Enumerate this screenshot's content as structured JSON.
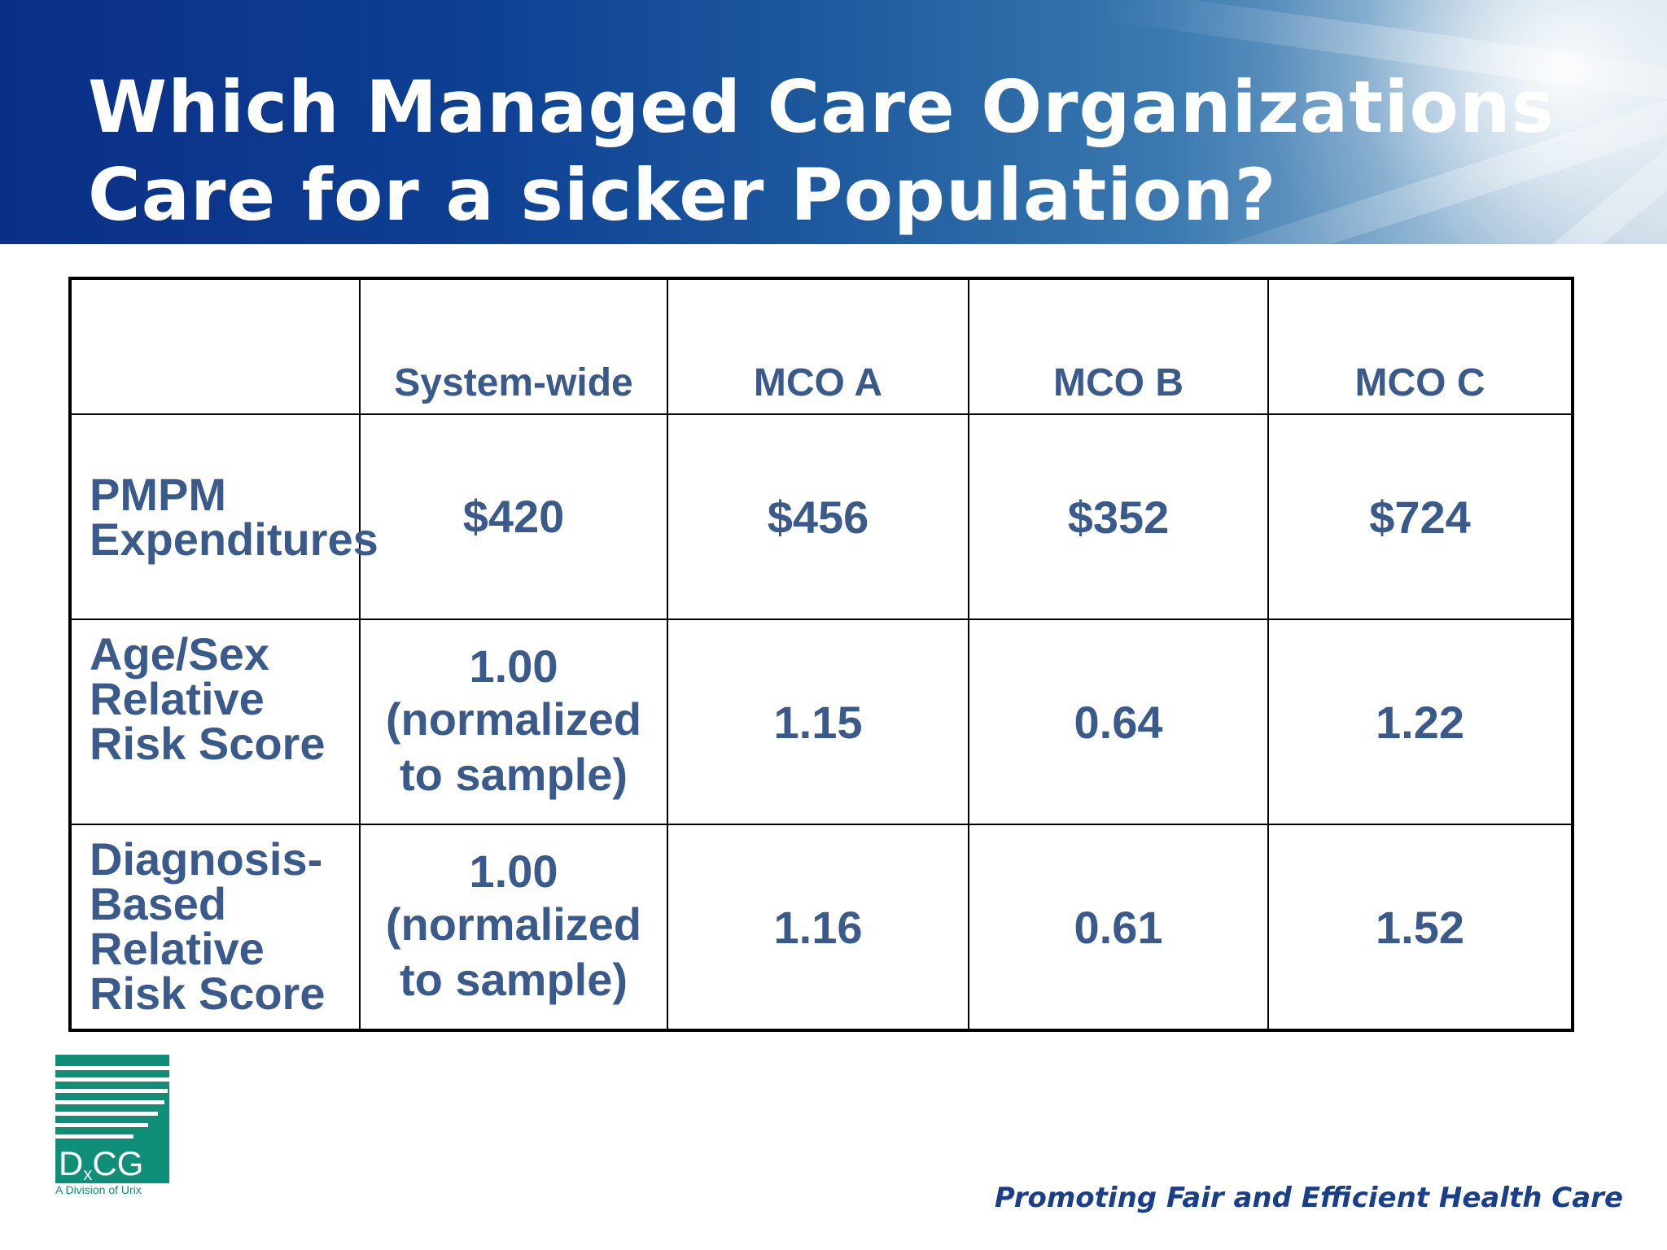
{
  "slide": {
    "title_lines": [
      "Which Managed Care Organizations",
      "Care for a sicker Population?"
    ],
    "tagline": "Promoting Fair and Efficient Health Care"
  },
  "table": {
    "columns": [
      "",
      "System-wide",
      "MCO A",
      "MCO B",
      "MCO C"
    ],
    "rows": [
      {
        "label": "PMPM Expenditures",
        "system_wide": "$420",
        "system_wide_note": "",
        "mco_a": "$456",
        "mco_b": "$352",
        "mco_c": "$724"
      },
      {
        "label": "Age/Sex Relative Risk Score",
        "system_wide": "1.00",
        "system_wide_note": "(normalized to sample)",
        "mco_a": "1.15",
        "mco_b": "0.64",
        "mco_c": "1.22"
      },
      {
        "label": "Diagnosis-Based Relative Risk Score",
        "system_wide": "1.00",
        "system_wide_note": "(normalized to sample)",
        "mco_a": "1.16",
        "mco_b": "0.61",
        "mco_c": "1.52"
      }
    ]
  },
  "logo": {
    "name_main": "D",
    "name_sub": "x",
    "name_rest": "CG",
    "division": "A Division of Urix",
    "icon": "dxcg-logo-icon"
  },
  "colors": {
    "header_blue": "#0a2f86",
    "table_text": "#3a5a8c",
    "logo_green": "#0f8f78",
    "tagline_blue": "#1a3f8a"
  }
}
